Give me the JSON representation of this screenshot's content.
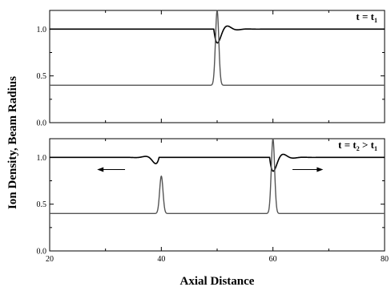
{
  "chart_data": {
    "type": "line",
    "xlabel": "Axial Distance",
    "ylabel": "Ion Density, Beam Radius",
    "xlim": [
      20,
      80
    ],
    "x_ticks": [
      "20",
      "40",
      "60",
      "80"
    ],
    "grid": false,
    "panels": [
      {
        "label_main": "t = t",
        "label_sub": "1",
        "label_tail": "",
        "ylim": [
          0.0,
          1.2
        ],
        "y_ticks": [
          "0.0",
          "0.5",
          "1.0"
        ],
        "series": [
          {
            "role": "beam-radius",
            "baseline": 1.0,
            "disturbances": [
              {
                "x0": 49.4,
                "direction": 1,
                "amplitude": -0.2,
                "decay": 1.2,
                "period": 3.6,
                "extent": 10
              }
            ]
          },
          {
            "role": "ion-density",
            "baseline": 0.4,
            "peaks": [
              {
                "x": 50,
                "height": 1.2,
                "width": 0.3
              }
            ]
          }
        ]
      },
      {
        "label_main": "t = t",
        "label_sub": "2",
        "label_tail": " > t",
        "label_sub2": "1",
        "ylim": [
          0.0,
          1.2
        ],
        "y_ticks": [
          "0.0",
          "0.5",
          "1.0"
        ],
        "series": [
          {
            "role": "beam-radius",
            "baseline": 1.0,
            "disturbances": [
              {
                "x0": 59.4,
                "direction": 1,
                "amplitude": -0.2,
                "decay": 1.2,
                "period": 3.6,
                "extent": 10
              },
              {
                "x0": 39.6,
                "direction": -1,
                "amplitude": -0.1,
                "decay": 1.0,
                "period": 3.6,
                "extent": 8
              }
            ]
          },
          {
            "role": "ion-density",
            "baseline": 0.4,
            "peaks": [
              {
                "x": 60,
                "height": 1.2,
                "width": 0.3
              },
              {
                "x": 40,
                "height": 0.8,
                "width": 0.3
              }
            ]
          }
        ],
        "arrows": [
          {
            "direction": "left",
            "x_from": 33.5,
            "x_to": 28.5,
            "y": 0.87
          },
          {
            "direction": "right",
            "x_from": 63.5,
            "x_to": 69,
            "y": 0.87
          }
        ]
      }
    ]
  }
}
